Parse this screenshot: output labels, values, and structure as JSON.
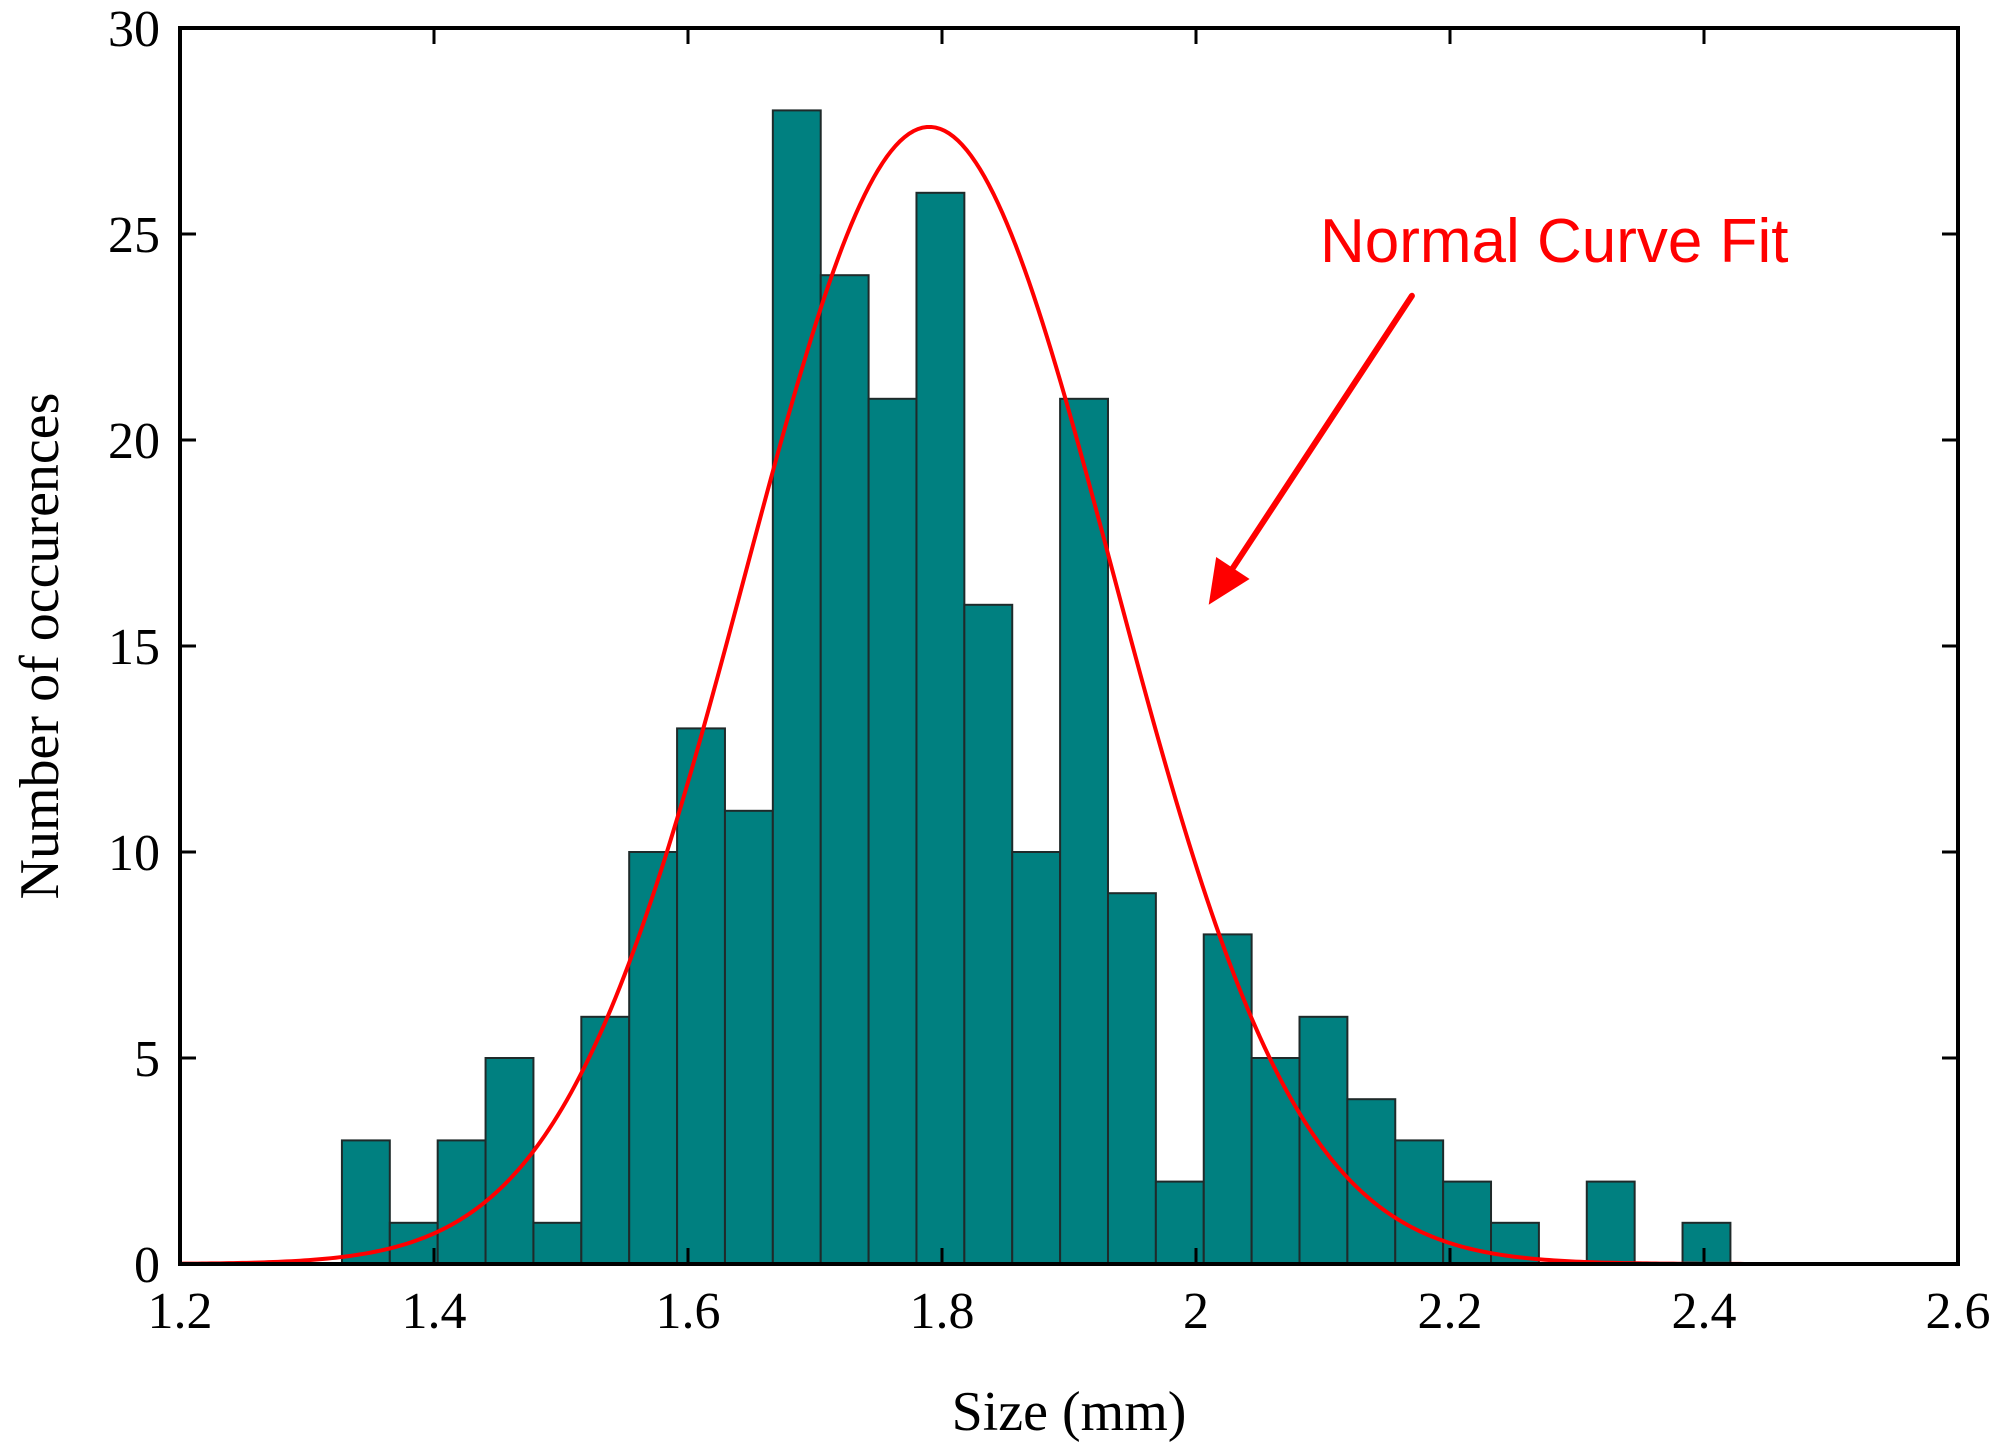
{
  "chart_data": {
    "type": "bar",
    "title": "",
    "xlabel": "Size (mm)",
    "ylabel": "Number of occurences",
    "xlim": [
      1.2,
      2.6
    ],
    "ylim": [
      0,
      30
    ],
    "xticks": [
      1.2,
      1.4,
      1.6,
      1.8,
      2.0,
      2.2,
      2.4,
      2.6
    ],
    "xtick_labels": [
      "1.2",
      "1.4",
      "1.6",
      "1.8",
      "2",
      "2.2",
      "2.4",
      "2.6"
    ],
    "yticks": [
      0,
      5,
      10,
      15,
      20,
      25,
      30
    ],
    "ytick_labels": [
      "0",
      "5",
      "10",
      "15",
      "20",
      "25",
      "30"
    ],
    "grid": false,
    "bar_color": "#008080",
    "curve_color": "#ff0000",
    "bin_width": 0.0377,
    "bins": [
      {
        "x": 1.3275,
        "count": 3
      },
      {
        "x": 1.3652,
        "count": 1
      },
      {
        "x": 1.4029,
        "count": 3
      },
      {
        "x": 1.4406,
        "count": 5
      },
      {
        "x": 1.4783,
        "count": 1
      },
      {
        "x": 1.516,
        "count": 6
      },
      {
        "x": 1.5537,
        "count": 10
      },
      {
        "x": 1.5914,
        "count": 13
      },
      {
        "x": 1.6291,
        "count": 11
      },
      {
        "x": 1.6668,
        "count": 28
      },
      {
        "x": 1.7045,
        "count": 24
      },
      {
        "x": 1.7422,
        "count": 21
      },
      {
        "x": 1.7799,
        "count": 26
      },
      {
        "x": 1.8176,
        "count": 16
      },
      {
        "x": 1.8553,
        "count": 10
      },
      {
        "x": 1.893,
        "count": 21
      },
      {
        "x": 1.9307,
        "count": 9
      },
      {
        "x": 1.9684,
        "count": 2
      },
      {
        "x": 2.0061,
        "count": 8
      },
      {
        "x": 2.0438,
        "count": 5
      },
      {
        "x": 2.0815,
        "count": 6
      },
      {
        "x": 2.1192,
        "count": 4
      },
      {
        "x": 2.1569,
        "count": 3
      },
      {
        "x": 2.1946,
        "count": 2
      },
      {
        "x": 2.2323,
        "count": 1
      },
      {
        "x": 2.27,
        "count": 0
      },
      {
        "x": 2.3077,
        "count": 2
      },
      {
        "x": 2.3454,
        "count": 0
      },
      {
        "x": 2.3831,
        "count": 1
      }
    ],
    "normal_fit": {
      "mean": 1.79,
      "sd": 0.145,
      "peak": 27.6
    },
    "annotation": {
      "text": "Normal Curve Fit",
      "arrow_from": [
        2.17,
        23.5
      ],
      "arrow_to": [
        2.01,
        16.0
      ]
    }
  }
}
